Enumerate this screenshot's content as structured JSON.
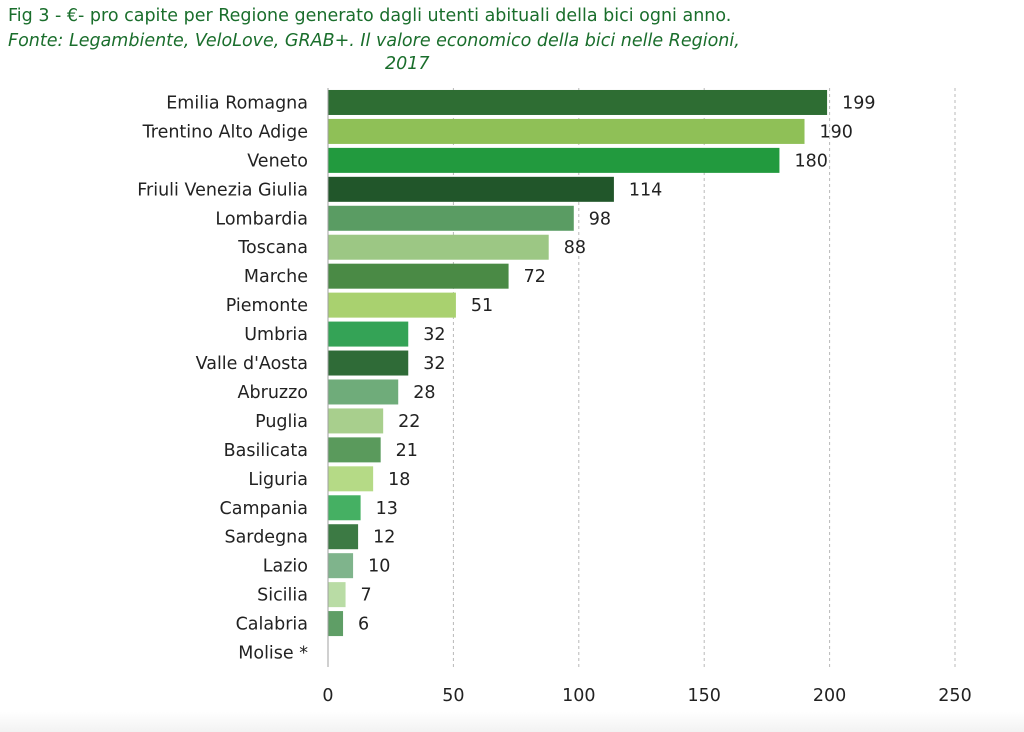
{
  "caption": {
    "line1": "Fig 3 - €- pro capite per  Regione generato dagli utenti abituali della bici ogni anno.",
    "line2": "Fonte: Legambiente, VeloLove, GRAB+. Il valore economico della bici nelle Regioni,",
    "line3": "2017"
  },
  "chart_data": {
    "type": "bar",
    "orientation": "horizontal",
    "title": "€- pro capite per Regione generato dagli utenti abituali della bici ogni anno",
    "xlabel": "",
    "ylabel": "",
    "xlim": [
      0,
      250
    ],
    "xticks": [
      "0",
      "50",
      "100",
      "150",
      "200",
      "250"
    ],
    "grid": "vertical dashed",
    "categories": [
      "Emilia Romagna",
      "Trentino Alto Adige",
      "Veneto",
      "Friuli Venezia Giulia",
      "Lombardia",
      "Toscana",
      "Marche",
      "Piemonte",
      "Umbria",
      "Valle d'Aosta",
      "Abruzzo",
      "Puglia",
      "Basilicata",
      "Liguria",
      "Campania",
      "Sardegna",
      "Lazio",
      "Sicilia",
      "Calabria",
      "Molise *"
    ],
    "values": [
      199,
      190,
      180,
      114,
      98,
      88,
      72,
      51,
      32,
      32,
      28,
      22,
      21,
      18,
      13,
      12,
      10,
      7,
      6,
      0
    ],
    "value_labels": [
      "199",
      "190",
      "180",
      "114",
      "98",
      "88",
      "72",
      "51",
      "32",
      "32",
      "28",
      "22",
      "21",
      "18",
      "13",
      "12",
      "10",
      "7",
      "6",
      ""
    ],
    "bar_colors": [
      "#2e6d33",
      "#8fc057",
      "#229a3e",
      "#21562a",
      "#5a9c63",
      "#9cc784",
      "#4a8a45",
      "#a9d16f",
      "#34a356",
      "#2f6b37",
      "#6fac7a",
      "#a8cf8d",
      "#5a9a5c",
      "#b5da86",
      "#45b063",
      "#3c7a44",
      "#7fb48c",
      "#b9dca5",
      "#5f9e66",
      "#ffffff"
    ]
  }
}
